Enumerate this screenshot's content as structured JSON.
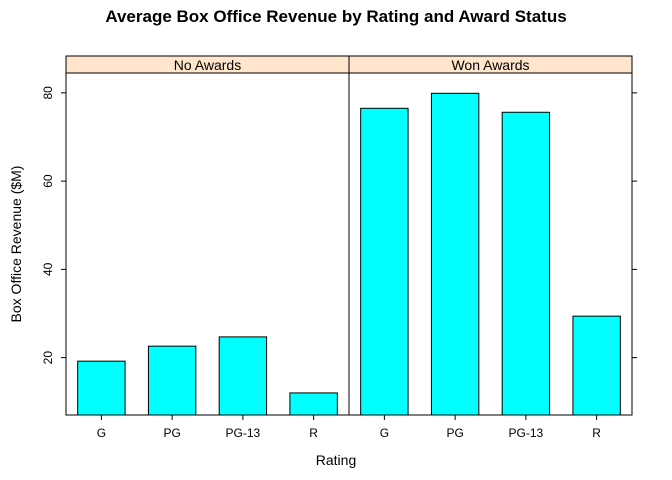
{
  "chart_data": {
    "type": "bar",
    "title": "Average Box Office Revenue by Rating and Award Status",
    "xlabel": "Rating",
    "ylabel": "Box Office Revenue ($M)",
    "ylim": [
      7.0,
      84.5
    ],
    "yticks": [
      20,
      40,
      60,
      80
    ],
    "categories": [
      "G",
      "PG",
      "PG-13",
      "R"
    ],
    "panels": [
      {
        "name": "No Awards",
        "values": [
          19.2,
          22.6,
          24.7,
          12.0
        ]
      },
      {
        "name": "Won Awards",
        "values": [
          76.5,
          79.9,
          75.6,
          29.4
        ]
      }
    ],
    "bar_color": "#00ffff",
    "strip_color": "#ffe5cc",
    "grid": false,
    "legend": "none"
  }
}
